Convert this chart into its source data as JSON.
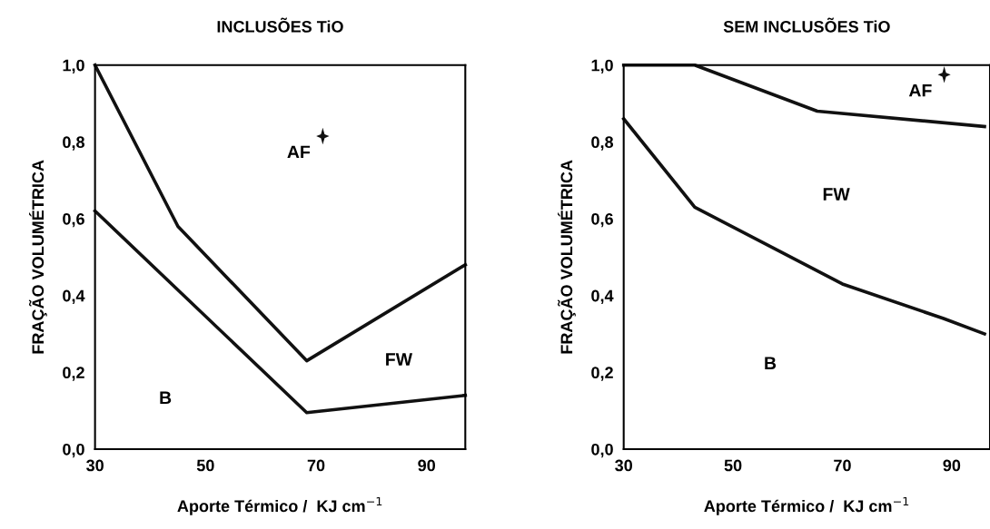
{
  "chart_data": [
    {
      "type": "line",
      "title": "INCLUSÕES TiO",
      "xlabel": "Aporte Térmico /  KJ cm$^{−1}$",
      "ylabel": "FRAÇÃO VOLUMÉTRICA",
      "series": [
        {
          "color": "#111111",
          "x": [
            30,
            45,
            68.3,
            97
          ],
          "values": [
            1.0,
            0.58,
            0.23,
            0.48
          ]
        },
        {
          "color": "#111111",
          "x": [
            30,
            68.3,
            97
          ],
          "values": [
            0.62,
            0.095,
            0.14
          ]
        }
      ],
      "xlim": [
        30,
        97
      ],
      "xticks": [
        30,
        50,
        70,
        90
      ],
      "ylim": [
        0,
        1.0
      ],
      "yticks": [
        {
          "value": 0,
          "label": "0,0"
        },
        {
          "value": 0.2,
          "label": "0,2"
        },
        {
          "value": 0.4,
          "label": "0,4"
        },
        {
          "value": 0.6,
          "label": "0,6"
        },
        {
          "value": 0.8,
          "label": "0,8"
        },
        {
          "value": 1.0,
          "label": "1,0"
        }
      ],
      "annotations": [
        "AF",
        "FW",
        "B"
      ],
      "grid": false,
      "legend": false,
      "marker": "none",
      "line_style": "solid"
    },
    {
      "type": "line",
      "title": "SEM INCLUSÕES TiO",
      "xlabel": "Aporte Térmico /  KJ cm$^{−1}$",
      "ylabel": "FRAÇÃO VOLUMÉTRICA",
      "series": [
        {
          "color": "#111111",
          "x": [
            30,
            43,
            65.4,
            96
          ],
          "values": [
            1.0,
            1.0,
            0.88,
            0.84
          ]
        },
        {
          "color": "#111111",
          "x": [
            30,
            43,
            70,
            88.5,
            96
          ],
          "values": [
            0.86,
            0.63,
            0.43,
            0.34,
            0.3
          ]
        }
      ],
      "xlim": [
        30,
        97
      ],
      "xticks": [
        30,
        50,
        70,
        90
      ],
      "ylim": [
        0,
        1.0
      ],
      "yticks": [
        {
          "value": 0,
          "label": "0,0"
        },
        {
          "value": 0.2,
          "label": "0,2"
        },
        {
          "value": 0.4,
          "label": "0,4"
        },
        {
          "value": 0.6,
          "label": "0,6"
        },
        {
          "value": 0.8,
          "label": "0,8"
        },
        {
          "value": 1.0,
          "label": "1,0"
        }
      ],
      "annotations": [
        "AF",
        "FW",
        "B"
      ],
      "grid": false,
      "legend": false,
      "marker": "none",
      "line_style": "solid"
    }
  ]
}
